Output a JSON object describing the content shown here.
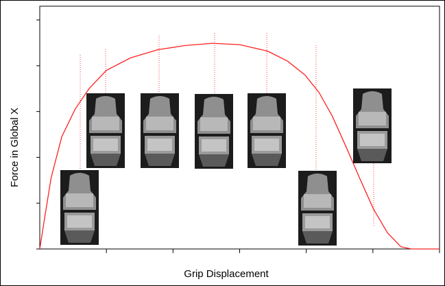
{
  "chart_data": {
    "type": "line",
    "x_label": "Grip Displacement",
    "y_label": "Force in Global X",
    "x": [
      0,
      0.07,
      0.17,
      0.33,
      0.53,
      0.74,
      1.0,
      1.36,
      1.77,
      2.18,
      2.59,
      3.0,
      3.42,
      3.72,
      3.98,
      4.19,
      4.39,
      4.6,
      4.8,
      5.01,
      5.22,
      5.42,
      5.58,
      6.0
    ],
    "series": [
      {
        "color": "#ff2020",
        "values": [
          0,
          0.65,
          1.55,
          2.45,
          3.05,
          3.5,
          3.9,
          4.17,
          4.35,
          4.44,
          4.49,
          4.46,
          4.32,
          4.1,
          3.8,
          3.42,
          2.9,
          2.22,
          1.55,
          0.87,
          0.35,
          0.05,
          0,
          0
        ]
      }
    ],
    "xlim": [
      0,
      6
    ],
    "xticks": [
      1,
      2,
      3,
      4,
      5,
      6
    ],
    "ylim": [
      0,
      5.3
    ],
    "yticks": [
      0,
      1,
      2,
      3,
      4,
      5
    ]
  }
}
